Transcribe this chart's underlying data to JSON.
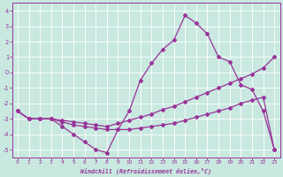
{
  "xlabel": "Windchill (Refroidissement éolien,°C)",
  "xlim": [
    -0.5,
    23.5
  ],
  "ylim": [
    -5.5,
    4.5
  ],
  "xticks": [
    0,
    1,
    2,
    3,
    4,
    5,
    6,
    7,
    8,
    9,
    10,
    11,
    12,
    13,
    14,
    15,
    16,
    17,
    18,
    19,
    20,
    21,
    22,
    23
  ],
  "yticks": [
    -5,
    -4,
    -3,
    -2,
    -1,
    0,
    1,
    2,
    3,
    4
  ],
  "background_color": "#c8e8e0",
  "line_color": "#993399",
  "grid_color": "#aad4cc",
  "line1_x": [
    0,
    1,
    2,
    3,
    4,
    5,
    6,
    7,
    8,
    9,
    10,
    11,
    12,
    13,
    14,
    15,
    16,
    17,
    18,
    19,
    20,
    21,
    22,
    23
  ],
  "line1_y": [
    -2.5,
    -3.0,
    -3.0,
    -3.0,
    -3.5,
    -4.0,
    -4.5,
    -5.0,
    -5.2,
    -3.7,
    -2.5,
    -0.5,
    0.6,
    1.5,
    2.1,
    3.7,
    3.2,
    2.5,
    1.0,
    0.7,
    -0.8,
    -1.1,
    -2.5,
    -5.0
  ],
  "line2_x": [
    0,
    1,
    2,
    3,
    4,
    5,
    6,
    7,
    8,
    9,
    10,
    11,
    12,
    13,
    14,
    15,
    16,
    17,
    18,
    19,
    20,
    21,
    22,
    23
  ],
  "line2_y": [
    -2.5,
    -3.0,
    -3.0,
    -3.0,
    -3.2,
    -3.4,
    -3.5,
    -3.6,
    -3.7,
    -3.7,
    -3.7,
    -3.6,
    -3.5,
    -3.4,
    -3.3,
    -3.1,
    -2.9,
    -2.7,
    -2.5,
    -2.3,
    -2.0,
    -1.8,
    -1.6,
    -5.0
  ],
  "line3_x": [
    0,
    1,
    2,
    3,
    4,
    5,
    6,
    7,
    8,
    9,
    10,
    11,
    12,
    13,
    14,
    15,
    16,
    17,
    18,
    19,
    20,
    21,
    22,
    23
  ],
  "line3_y": [
    -2.5,
    -3.0,
    -3.0,
    -3.0,
    -3.1,
    -3.2,
    -3.3,
    -3.4,
    -3.5,
    -3.3,
    -3.1,
    -2.9,
    -2.7,
    -2.4,
    -2.2,
    -1.9,
    -1.6,
    -1.3,
    -1.0,
    -0.7,
    -0.4,
    -0.1,
    0.3,
    1.0
  ]
}
